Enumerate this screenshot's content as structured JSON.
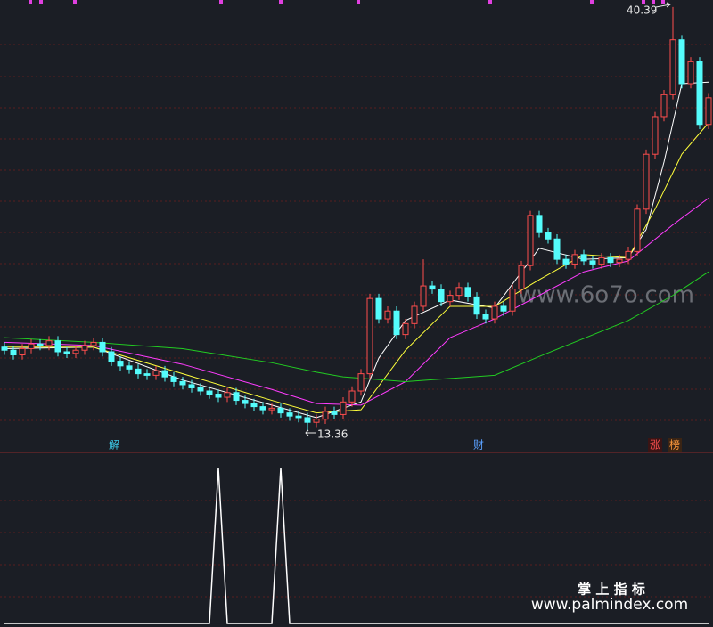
{
  "chart_data": [
    {
      "type": "candlestick",
      "ylim": [
        11.98,
        40.84
      ],
      "up_color": "#ff4d4d",
      "down_color": "#54fcfc",
      "open": [
        18.7,
        18.5,
        18.2,
        18.6,
        18.9,
        18.8,
        19.1,
        18.4,
        18.3,
        18.5,
        18.8,
        19.0,
        18.4,
        17.8,
        17.5,
        17.3,
        17.0,
        16.9,
        17.2,
        16.8,
        16.5,
        16.3,
        16.1,
        15.9,
        15.7,
        15.5,
        15.8,
        15.3,
        15.1,
        14.9,
        14.7,
        14.8,
        14.5,
        14.3,
        14.2,
        13.9,
        14.1,
        14.6,
        14.4,
        15.2,
        15.9,
        17.0,
        21.8,
        20.5,
        21.0,
        19.5,
        20.2,
        21.3,
        22.6,
        22.4,
        21.6,
        22.0,
        22.5,
        21.9,
        20.8,
        20.5,
        21.3,
        21.0,
        22.4,
        23.9,
        27.1,
        26.0,
        25.6,
        24.3,
        24.0,
        24.6,
        24.2,
        24.0,
        24.4,
        24.1,
        24.3,
        24.8,
        27.5,
        31.0,
        33.4,
        34.8,
        38.3,
        35.5,
        36.9,
        32.9
      ],
      "high": [
        19.0,
        18.8,
        18.9,
        19.2,
        19.2,
        19.4,
        19.4,
        18.7,
        18.8,
        19.1,
        19.3,
        19.3,
        18.7,
        18.1,
        17.8,
        17.6,
        17.3,
        17.5,
        17.5,
        17.1,
        16.8,
        16.6,
        16.4,
        16.2,
        16.0,
        16.1,
        16.1,
        15.6,
        15.4,
        15.2,
        15.1,
        15.1,
        14.8,
        14.6,
        14.5,
        14.4,
        14.9,
        14.9,
        15.5,
        16.2,
        17.3,
        22.1,
        22.1,
        21.3,
        21.3,
        20.5,
        21.6,
        24.3,
        22.9,
        22.7,
        22.3,
        22.8,
        22.8,
        22.2,
        21.1,
        21.6,
        21.6,
        22.7,
        24.2,
        27.4,
        27.4,
        26.3,
        25.9,
        24.6,
        24.9,
        24.9,
        24.5,
        24.7,
        24.7,
        24.6,
        25.1,
        27.8,
        31.3,
        33.7,
        35.1,
        40.39,
        38.6,
        37.2,
        37.2,
        34.9
      ],
      "low": [
        18.2,
        17.9,
        17.9,
        18.3,
        18.5,
        18.5,
        18.1,
        18.0,
        18.0,
        18.2,
        18.5,
        18.1,
        17.5,
        17.2,
        17.0,
        16.7,
        16.6,
        16.6,
        16.5,
        16.2,
        16.0,
        15.8,
        15.6,
        15.4,
        15.2,
        15.2,
        15.0,
        14.8,
        14.6,
        14.4,
        14.4,
        14.2,
        14.0,
        13.9,
        13.36,
        13.6,
        13.8,
        14.1,
        14.1,
        14.9,
        15.6,
        16.7,
        20.2,
        20.2,
        19.2,
        19.2,
        19.9,
        21.0,
        22.1,
        21.3,
        21.3,
        21.7,
        21.6,
        20.5,
        20.2,
        20.2,
        20.7,
        20.7,
        22.1,
        23.6,
        25.7,
        25.3,
        24.0,
        23.7,
        23.7,
        23.9,
        23.7,
        23.7,
        23.8,
        23.8,
        24.0,
        24.5,
        27.2,
        30.7,
        33.1,
        34.5,
        35.2,
        35.2,
        32.6,
        32.6
      ],
      "close": [
        18.5,
        18.2,
        18.6,
        18.9,
        18.8,
        19.1,
        18.4,
        18.3,
        18.5,
        18.8,
        19.0,
        18.4,
        17.8,
        17.5,
        17.3,
        17.0,
        16.9,
        17.2,
        16.8,
        16.5,
        16.3,
        16.1,
        15.9,
        15.7,
        15.5,
        15.8,
        15.3,
        15.1,
        14.9,
        14.7,
        14.8,
        14.5,
        14.3,
        14.2,
        13.9,
        14.1,
        14.6,
        14.4,
        15.2,
        15.9,
        17.0,
        21.8,
        20.5,
        21.0,
        19.5,
        20.2,
        21.3,
        22.6,
        22.4,
        21.6,
        22.0,
        22.5,
        21.9,
        20.8,
        20.5,
        21.3,
        21.0,
        22.4,
        23.9,
        27.1,
        26.0,
        25.6,
        24.3,
        24.0,
        24.6,
        24.2,
        24.0,
        24.4,
        24.1,
        24.3,
        24.8,
        27.5,
        31.0,
        33.4,
        34.8,
        38.3,
        35.5,
        36.9,
        32.9,
        34.6
      ],
      "lines": [
        {
          "color": "#ffffff",
          "x": [
            0,
            10,
            20,
            30,
            35,
            40,
            42,
            45,
            50,
            55,
            60,
            65,
            70,
            72,
            74,
            76,
            79
          ],
          "values": [
            18.6,
            18.7,
            16.6,
            15.0,
            14.2,
            15.2,
            18.0,
            20.4,
            21.7,
            21.2,
            25.0,
            24.3,
            24.4,
            26.2,
            30.5,
            35.5,
            35.6
          ]
        },
        {
          "color": "#ffff3c",
          "x": [
            0,
            10,
            20,
            30,
            35,
            40,
            45,
            50,
            55,
            60,
            65,
            70,
            73,
            76,
            79
          ],
          "values": [
            18.7,
            18.7,
            17.0,
            15.3,
            14.5,
            14.7,
            18.5,
            21.3,
            21.3,
            23.0,
            24.6,
            24.4,
            27.5,
            31.0,
            33.0
          ]
        },
        {
          "color": "#ff3cff",
          "x": [
            0,
            10,
            20,
            30,
            35,
            40,
            45,
            50,
            55,
            60,
            65,
            70,
            75,
            79
          ],
          "values": [
            19.0,
            18.8,
            17.6,
            16.0,
            15.1,
            15.0,
            16.5,
            19.3,
            20.5,
            22.0,
            23.5,
            24.2,
            26.5,
            28.2
          ]
        },
        {
          "color": "#22cc22",
          "x": [
            0,
            10,
            20,
            30,
            35,
            38,
            45,
            55,
            60,
            70,
            75,
            79
          ],
          "values": [
            19.3,
            19.0,
            18.6,
            17.7,
            17.1,
            16.8,
            16.5,
            16.9,
            18.1,
            20.4,
            22.0,
            23.5
          ]
        }
      ],
      "annotations": [
        "解",
        "财",
        "涨",
        "榜"
      ],
      "watermark": "www.6o7o.com"
    },
    {
      "type": "line",
      "color": "#ffffff",
      "ylim": [
        0,
        1.1
      ],
      "x": [
        0,
        23,
        24,
        25,
        30,
        31,
        32,
        79
      ],
      "values": [
        0,
        0,
        1,
        0,
        0,
        1,
        0,
        0
      ]
    }
  ],
  "footer": {
    "title": "掌 上 指 标",
    "url": "www.palmindex.com"
  }
}
